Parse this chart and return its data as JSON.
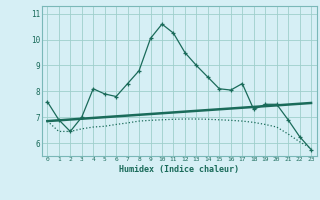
{
  "xlabel": "Humidex (Indice chaleur)",
  "background_color": "#d6eff5",
  "grid_color": "#9ecfcc",
  "line_color": "#1a6b5a",
  "xlim": [
    -0.5,
    23.5
  ],
  "ylim": [
    5.5,
    11.3
  ],
  "yticks": [
    6,
    7,
    8,
    9,
    10,
    11
  ],
  "xticks": [
    0,
    1,
    2,
    3,
    4,
    5,
    6,
    7,
    8,
    9,
    10,
    11,
    12,
    13,
    14,
    15,
    16,
    17,
    18,
    19,
    20,
    21,
    22,
    23
  ],
  "line1_x": [
    0,
    1,
    2,
    3,
    4,
    5,
    6,
    7,
    8,
    9,
    10,
    11,
    12,
    13,
    14,
    15,
    16,
    17,
    18,
    19,
    20,
    21,
    22,
    23
  ],
  "line1_y": [
    7.6,
    6.9,
    6.45,
    7.0,
    8.1,
    7.9,
    7.8,
    8.3,
    8.8,
    10.05,
    10.6,
    10.25,
    9.5,
    9.0,
    8.55,
    8.1,
    8.05,
    8.3,
    7.3,
    7.5,
    7.5,
    6.9,
    6.25,
    5.75
  ],
  "line2_x": [
    0,
    1,
    2,
    3,
    4,
    5,
    6,
    7,
    8,
    9,
    10,
    11,
    12,
    13,
    14,
    15,
    16,
    17,
    18,
    19,
    20,
    21,
    22,
    23
  ],
  "line2_y": [
    6.85,
    6.45,
    6.45,
    6.55,
    6.62,
    6.65,
    6.72,
    6.78,
    6.85,
    6.88,
    6.9,
    6.92,
    6.93,
    6.93,
    6.92,
    6.9,
    6.88,
    6.85,
    6.8,
    6.72,
    6.62,
    6.35,
    6.05,
    5.8
  ],
  "line3_x": [
    0,
    23
  ],
  "line3_y": [
    6.85,
    7.55
  ]
}
